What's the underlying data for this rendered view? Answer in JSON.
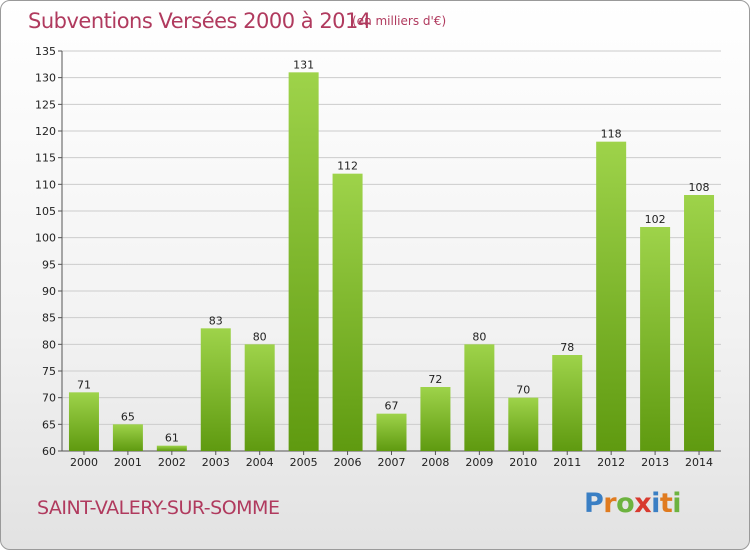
{
  "title": "Subventions Versées 2000 à 2014",
  "unit_note": "(en milliers d'€)",
  "commune": "SAINT-VALERY-SUR-SOMME",
  "logo": {
    "text": "Proxiti",
    "letters": [
      "P",
      "r",
      "o",
      "x",
      "i",
      "t",
      "i"
    ],
    "colors": [
      "#3a7fc4",
      "#e07b1f",
      "#6db33f",
      "#d83a2f",
      "#3a7fc4",
      "#e07b1f",
      "#6db33f"
    ]
  },
  "colors": {
    "bar_top": "#9ed34a",
    "bar_bottom": "#5f9a10",
    "grid": "#cccccc",
    "title": "#b03a5e"
  },
  "chart_data": {
    "type": "bar",
    "title": "Subventions Versées 2000 à 2014",
    "xlabel": "",
    "ylabel": "",
    "categories": [
      "2000",
      "2001",
      "2002",
      "2003",
      "2004",
      "2005",
      "2006",
      "2007",
      "2008",
      "2009",
      "2010",
      "2011",
      "2012",
      "2013",
      "2014"
    ],
    "values": [
      71,
      65,
      61,
      83,
      80,
      131,
      112,
      67,
      72,
      80,
      70,
      78,
      118,
      102,
      108
    ],
    "ylim": [
      60,
      135
    ],
    "yticks": [
      60,
      65,
      70,
      75,
      80,
      85,
      90,
      95,
      100,
      105,
      110,
      115,
      120,
      125,
      130,
      135
    ],
    "grid": true,
    "legend": "none"
  }
}
